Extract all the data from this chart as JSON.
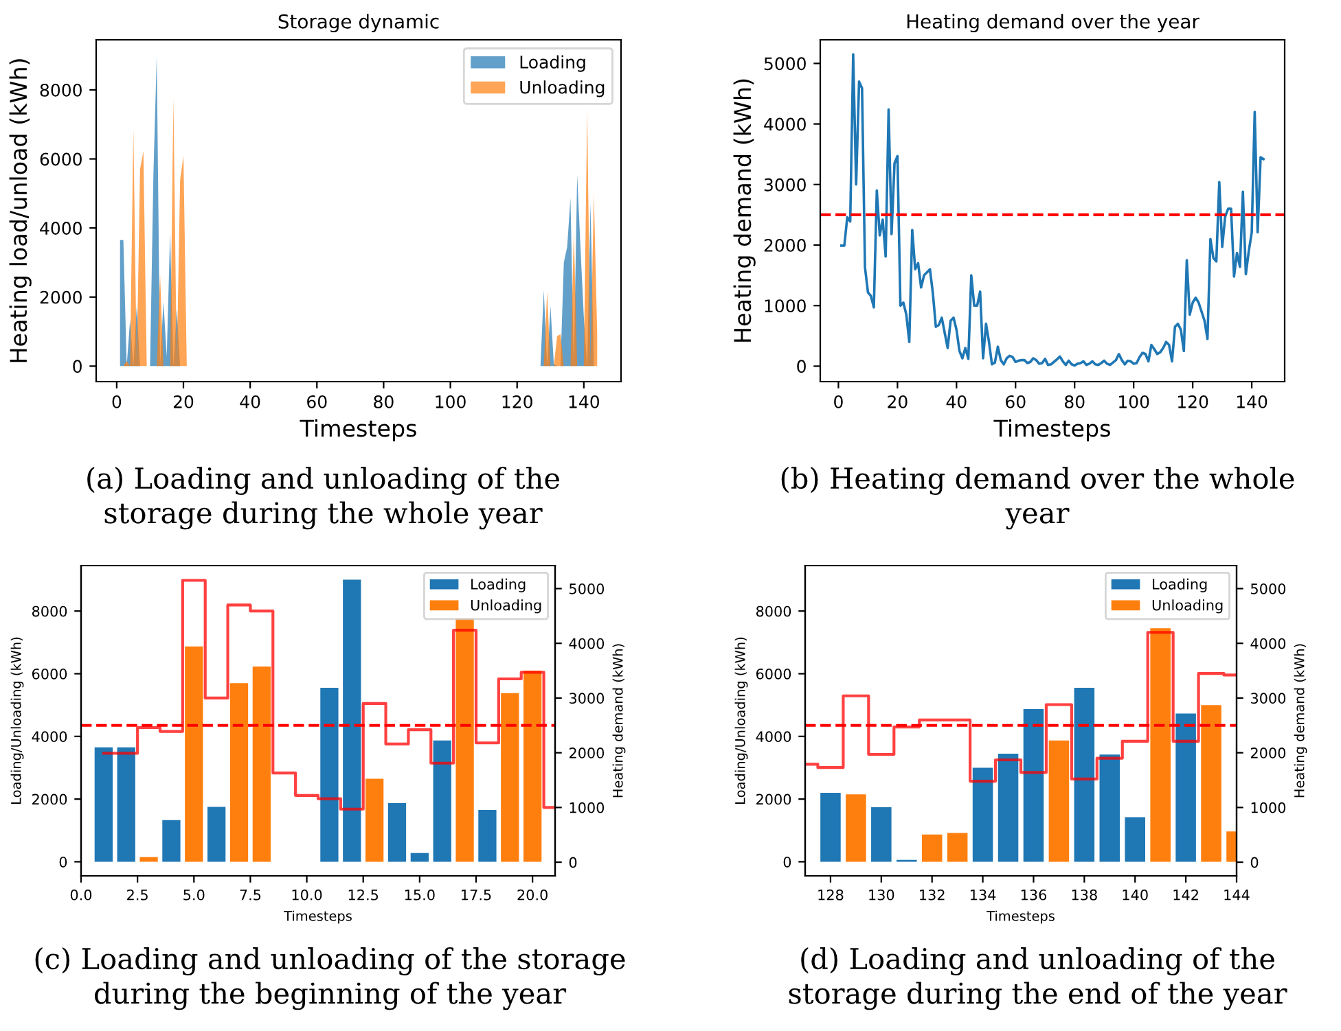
{
  "chart_data": [
    {
      "type": "area",
      "title": "Storage dynamic",
      "xlabel": "Timesteps",
      "ylabel": "Heating load/unload (kWh)",
      "xlim": [
        -6.15,
        151.15
      ],
      "ylim": [
        -450,
        9450
      ],
      "xticks": [
        0,
        20,
        40,
        60,
        80,
        100,
        120,
        140
      ],
      "yticks": [
        0,
        2000,
        4000,
        6000,
        8000
      ],
      "legend": "top right",
      "annotations": [
        "(a) Loading and unloading of the storage during the whole year"
      ],
      "series": [
        {
          "name": "Loading",
          "color": "#1f77b4",
          "x": [
            1,
            2,
            3,
            4,
            5,
            6,
            7,
            8,
            9,
            10,
            11,
            12,
            13,
            14,
            15,
            16,
            17,
            18,
            19,
            20,
            21,
            127,
            128,
            129,
            130,
            131,
            132,
            133,
            134,
            135,
            136,
            137,
            138,
            139,
            140,
            141,
            142,
            143,
            144
          ],
          "values": [
            3650,
            3650,
            0,
            1330,
            0,
            1750,
            0,
            0,
            0,
            0,
            5550,
            9000,
            0,
            1870,
            280,
            3870,
            0,
            1650,
            0,
            0,
            0,
            0,
            2200,
            0,
            1740,
            60,
            0,
            0,
            3000,
            3450,
            4870,
            0,
            5550,
            3420,
            1420,
            0,
            4730,
            0,
            0
          ]
        },
        {
          "name": "Unloading",
          "color": "#ff7f0e",
          "x": [
            1,
            2,
            3,
            4,
            5,
            6,
            7,
            8,
            9,
            10,
            11,
            12,
            13,
            14,
            15,
            16,
            17,
            18,
            19,
            20,
            21,
            127,
            128,
            129,
            130,
            131,
            132,
            133,
            134,
            135,
            136,
            137,
            138,
            139,
            140,
            141,
            142,
            143,
            144
          ],
          "values": [
            0,
            0,
            150,
            0,
            6870,
            0,
            5700,
            6230,
            0,
            0,
            0,
            0,
            2650,
            0,
            0,
            0,
            7750,
            0,
            5380,
            6100,
            0,
            0,
            0,
            2150,
            0,
            0,
            870,
            920,
            0,
            0,
            0,
            3870,
            0,
            0,
            0,
            7450,
            0,
            5000,
            970
          ]
        }
      ]
    },
    {
      "type": "line",
      "title": "Heating demand over the year",
      "xlabel": "Timesteps",
      "ylabel": "Heating demand (kWh)",
      "xlim": [
        -6.15,
        151.15
      ],
      "ylim": [
        -256,
        5390
      ],
      "xticks": [
        0,
        20,
        40,
        60,
        80,
        100,
        120,
        140
      ],
      "yticks": [
        0,
        1000,
        2000,
        3000,
        4000,
        5000
      ],
      "annotations": [
        "(b) Heating demand over the whole year"
      ],
      "ref_lines": [
        {
          "axis": "y",
          "value": 2500,
          "color": "#ff0000",
          "line_style": "dashed"
        }
      ],
      "series": [
        {
          "color": "#1f77b4",
          "x": [
            1,
            2,
            3,
            4,
            5,
            6,
            7,
            8,
            9,
            10,
            11,
            12,
            13,
            14,
            15,
            16,
            17,
            18,
            19,
            20,
            21,
            22,
            23,
            24,
            25,
            26,
            27,
            28,
            29,
            30,
            31,
            32,
            33,
            34,
            35,
            36,
            37,
            38,
            39,
            40,
            41,
            42,
            43,
            44,
            45,
            46,
            47,
            48,
            49,
            50,
            51,
            52,
            53,
            54,
            55,
            56,
            57,
            58,
            59,
            60,
            61,
            62,
            63,
            64,
            65,
            66,
            67,
            68,
            69,
            70,
            71,
            72,
            73,
            74,
            75,
            76,
            77,
            78,
            79,
            80,
            81,
            82,
            83,
            84,
            85,
            86,
            87,
            88,
            89,
            90,
            91,
            92,
            93,
            94,
            95,
            96,
            97,
            98,
            99,
            100,
            101,
            102,
            103,
            104,
            105,
            106,
            107,
            108,
            109,
            110,
            111,
            112,
            113,
            114,
            115,
            116,
            117,
            118,
            119,
            120,
            121,
            122,
            123,
            124,
            125,
            126,
            127,
            128,
            129,
            130,
            131,
            132,
            133,
            134,
            135,
            136,
            137,
            138,
            139,
            140,
            141,
            142,
            143,
            144
          ],
          "values": [
            1990,
            1990,
            2460,
            2390,
            5150,
            3000,
            4700,
            4590,
            1630,
            1220,
            1160,
            970,
            2900,
            2160,
            2420,
            1810,
            4240,
            2180,
            3350,
            3470,
            1000,
            1050,
            850,
            400,
            2250,
            1600,
            1700,
            1300,
            1500,
            1550,
            1600,
            1200,
            650,
            680,
            800,
            550,
            300,
            750,
            800,
            600,
            250,
            130,
            300,
            120,
            1500,
            1000,
            1000,
            1230,
            130,
            700,
            400,
            30,
            60,
            320,
            100,
            30,
            130,
            170,
            150,
            70,
            90,
            100,
            100,
            50,
            70,
            130,
            100,
            40,
            50,
            120,
            20,
            30,
            70,
            110,
            160,
            80,
            20,
            90,
            30,
            10,
            40,
            50,
            80,
            20,
            40,
            80,
            30,
            20,
            50,
            90,
            40,
            20,
            60,
            100,
            200,
            100,
            30,
            90,
            80,
            40,
            50,
            150,
            220,
            200,
            80,
            350,
            280,
            200,
            230,
            300,
            400,
            350,
            80,
            650,
            700,
            600,
            250,
            1750,
            850,
            1050,
            1130,
            1050,
            900,
            750,
            450,
            2100,
            1790,
            1730,
            3040,
            1970,
            2470,
            2600,
            2600,
            1480,
            1870,
            1640,
            2880,
            1520,
            1900,
            2210,
            4200,
            2210,
            3450,
            3420
          ]
        }
      ]
    },
    {
      "type": "bar",
      "xlabel": "Timesteps",
      "ylabel": "Loading/Unloading (kWh)",
      "y2label": "Heating demand (kWh)",
      "x": [
        1,
        2,
        3,
        4,
        5,
        6,
        7,
        8,
        9,
        10,
        11,
        12,
        13,
        14,
        15,
        16,
        17,
        18,
        19,
        20
      ],
      "xlim": [
        0,
        21
      ],
      "ylim": [
        -450,
        9450
      ],
      "y2lim": [
        -250,
        5420
      ],
      "xticks": [
        {
          "value": 0,
          "label": "0.0"
        },
        {
          "value": 2.5,
          "label": "2.5"
        },
        {
          "value": 5,
          "label": "5.0"
        },
        {
          "value": 7.5,
          "label": "7.5"
        },
        {
          "value": 10,
          "label": "10.0"
        },
        {
          "value": 12.5,
          "label": "12.5"
        },
        {
          "value": 15,
          "label": "15.0"
        },
        {
          "value": 17.5,
          "label": "17.5"
        },
        {
          "value": 20,
          "label": "20.0"
        }
      ],
      "yticks": [
        0,
        2000,
        4000,
        6000,
        8000
      ],
      "y2ticks": [
        0,
        1000,
        2000,
        3000,
        4000,
        5000
      ],
      "legend": "top right",
      "annotations": [
        "(c) Loading and unloading of the storage during the beginning of the year"
      ],
      "ref_lines": [
        {
          "axis": "y2",
          "value": 2500,
          "color": "#ff0000",
          "line_style": "dashed"
        }
      ],
      "series": [
        {
          "name": "Loading",
          "color": "#1f77b4",
          "values": [
            3650,
            3650,
            null,
            1330,
            null,
            1750,
            null,
            null,
            null,
            null,
            5550,
            9000,
            null,
            1870,
            280,
            3870,
            null,
            1650,
            null,
            null
          ]
        },
        {
          "name": "Unloading",
          "color": "#ff7f0e",
          "values": [
            null,
            null,
            150,
            null,
            6870,
            null,
            5700,
            6230,
            null,
            null,
            null,
            null,
            2650,
            null,
            null,
            null,
            7750,
            null,
            5380,
            6100
          ]
        },
        {
          "type": "step",
          "axis": "y2",
          "color": "#ff0000",
          "x": [
            1,
            2,
            3,
            4,
            5,
            6,
            7,
            8,
            9,
            10,
            11,
            12,
            13,
            14,
            15,
            16,
            17,
            18,
            19,
            20,
            21
          ],
          "values": [
            1990,
            1990,
            2460,
            2390,
            5150,
            3000,
            4700,
            4590,
            1630,
            1220,
            1160,
            970,
            2900,
            2160,
            2420,
            1810,
            4240,
            2180,
            3350,
            3470,
            1000
          ]
        }
      ]
    },
    {
      "type": "bar",
      "xlabel": "Timesteps",
      "ylabel": "Loading/Unloading (kWh)",
      "y2label": "Heating demand (kWh)",
      "x": [
        128,
        129,
        130,
        131,
        132,
        133,
        134,
        135,
        136,
        137,
        138,
        139,
        140,
        141,
        142,
        143,
        144
      ],
      "xlim": [
        127,
        144
      ],
      "ylim": [
        -450,
        9450
      ],
      "y2lim": [
        -250,
        5420
      ],
      "xticks": [
        128,
        130,
        132,
        134,
        136,
        138,
        140,
        142,
        144
      ],
      "yticks": [
        0,
        2000,
        4000,
        6000,
        8000
      ],
      "y2ticks": [
        0,
        1000,
        2000,
        3000,
        4000,
        5000
      ],
      "legend": "top right",
      "annotations": [
        "(d) Loading and unloading of the storage during the end of the year"
      ],
      "ref_lines": [
        {
          "axis": "y2",
          "value": 2500,
          "color": "#ff0000",
          "line_style": "dashed"
        }
      ],
      "series": [
        {
          "name": "Loading",
          "color": "#1f77b4",
          "values": [
            2200,
            null,
            1740,
            60,
            null,
            null,
            3000,
            3450,
            4870,
            null,
            5550,
            3420,
            1420,
            null,
            4730,
            null,
            null
          ]
        },
        {
          "name": "Unloading",
          "color": "#ff7f0e",
          "values": [
            null,
            2150,
            null,
            null,
            870,
            920,
            null,
            null,
            null,
            3870,
            null,
            null,
            null,
            7450,
            null,
            5000,
            970
          ]
        },
        {
          "type": "step",
          "axis": "y2",
          "color": "#ff0000",
          "x": [
            127,
            128,
            129,
            130,
            131,
            132,
            133,
            134,
            135,
            136,
            137,
            138,
            139,
            140,
            141,
            142,
            143,
            144
          ],
          "values": [
            1790,
            1730,
            3040,
            1970,
            2470,
            2600,
            2600,
            1480,
            1870,
            1640,
            2880,
            1520,
            1900,
            2210,
            4200,
            2210,
            3450,
            3420
          ]
        }
      ]
    }
  ]
}
